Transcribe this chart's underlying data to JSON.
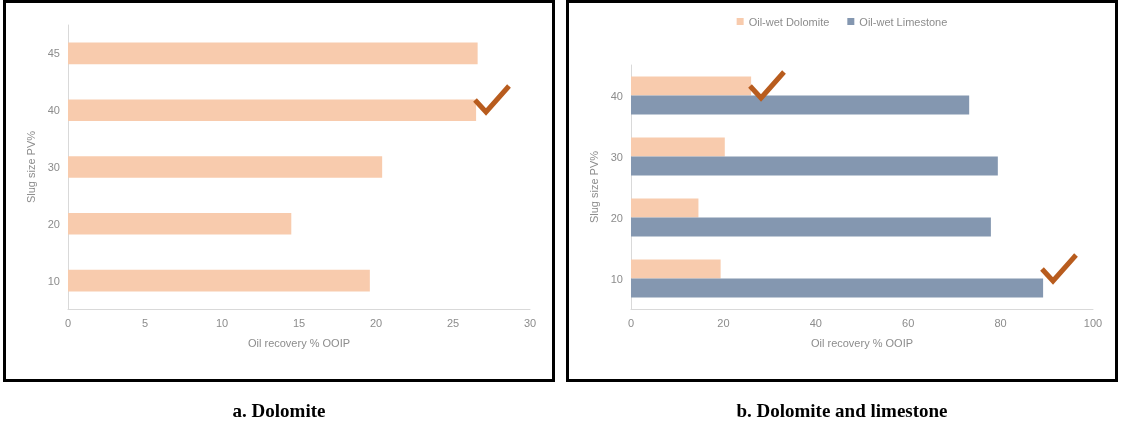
{
  "chart_data": [
    {
      "type": "bar",
      "orientation": "horizontal",
      "title": "a. Dolomite",
      "xlabel": "Oil recovery % OOIP",
      "ylabel": "Slug size PV%",
      "categories": [
        "45",
        "40",
        "30",
        "20",
        "10"
      ],
      "series": [
        {
          "color": "#f8cbad",
          "values": [
            26.6,
            26.5,
            20.4,
            14.5,
            19.6
          ]
        }
      ],
      "xlim": [
        0,
        30
      ],
      "xticks": [
        0,
        5,
        10,
        15,
        20,
        25,
        30
      ],
      "grid": false,
      "legend": false
    },
    {
      "type": "bar",
      "orientation": "horizontal",
      "title": "b. Dolomite and limestone",
      "xlabel": "Oil recovery % OOIP",
      "ylabel": "Slug size PV%",
      "categories": [
        "40",
        "30",
        "20",
        "10"
      ],
      "series": [
        {
          "name": "Oil-wet Dolomite",
          "color": "#f8cbad",
          "values": [
            26.0,
            20.3,
            14.6,
            19.4
          ]
        },
        {
          "name": "Oil-wet Limestone",
          "color": "#8497b0",
          "values": [
            73.2,
            79.4,
            77.9,
            89.2
          ]
        }
      ],
      "xlim": [
        0,
        100
      ],
      "xticks": [
        0,
        20,
        40,
        60,
        80,
        100
      ],
      "grid": false,
      "legend": "top"
    }
  ]
}
